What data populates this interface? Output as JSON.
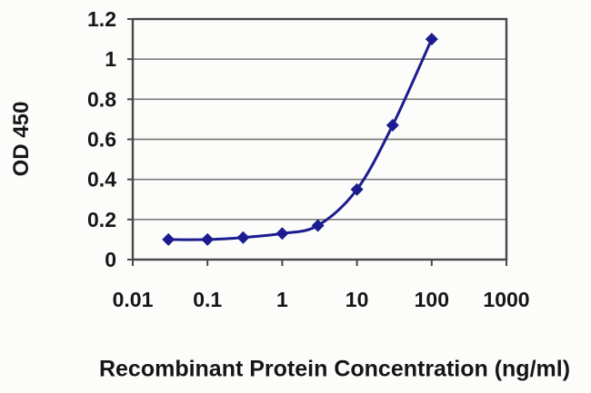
{
  "chart_data": {
    "type": "line",
    "title": "",
    "xlabel": "Recombinant Protein Concentration (ng/ml)",
    "ylabel": "OD 450",
    "x_scale": "log",
    "xlim": [
      0.01,
      1000
    ],
    "ylim": [
      0,
      1.2
    ],
    "x_ticks": [
      0.01,
      0.1,
      1,
      10,
      100,
      1000
    ],
    "x_tick_labels": [
      "0.01",
      "0.1",
      "1",
      "10",
      "100",
      "1000"
    ],
    "y_ticks": [
      0,
      0.2,
      0.4,
      0.6,
      0.8,
      1,
      1.2
    ],
    "y_tick_labels": [
      "0",
      "0.2",
      "0.4",
      "0.6",
      "0.8",
      "1",
      "1.2"
    ],
    "grid": "horizontal",
    "legend": "none",
    "series": [
      {
        "name": "OD 450",
        "marker": "diamond",
        "line_style": "smooth",
        "color": "#1c1c90",
        "x": [
          0.03,
          0.1,
          0.3,
          1,
          3,
          10,
          30,
          100
        ],
        "y": [
          0.1,
          0.1,
          0.11,
          0.13,
          0.17,
          0.35,
          0.67,
          1.1
        ]
      }
    ],
    "colors": {
      "line": "#1c1c90",
      "marker": "#1c1c90",
      "grid": "#7d7d7d",
      "border": "#474747",
      "tick_text": "#161616",
      "background": "#fcfcfa"
    }
  }
}
